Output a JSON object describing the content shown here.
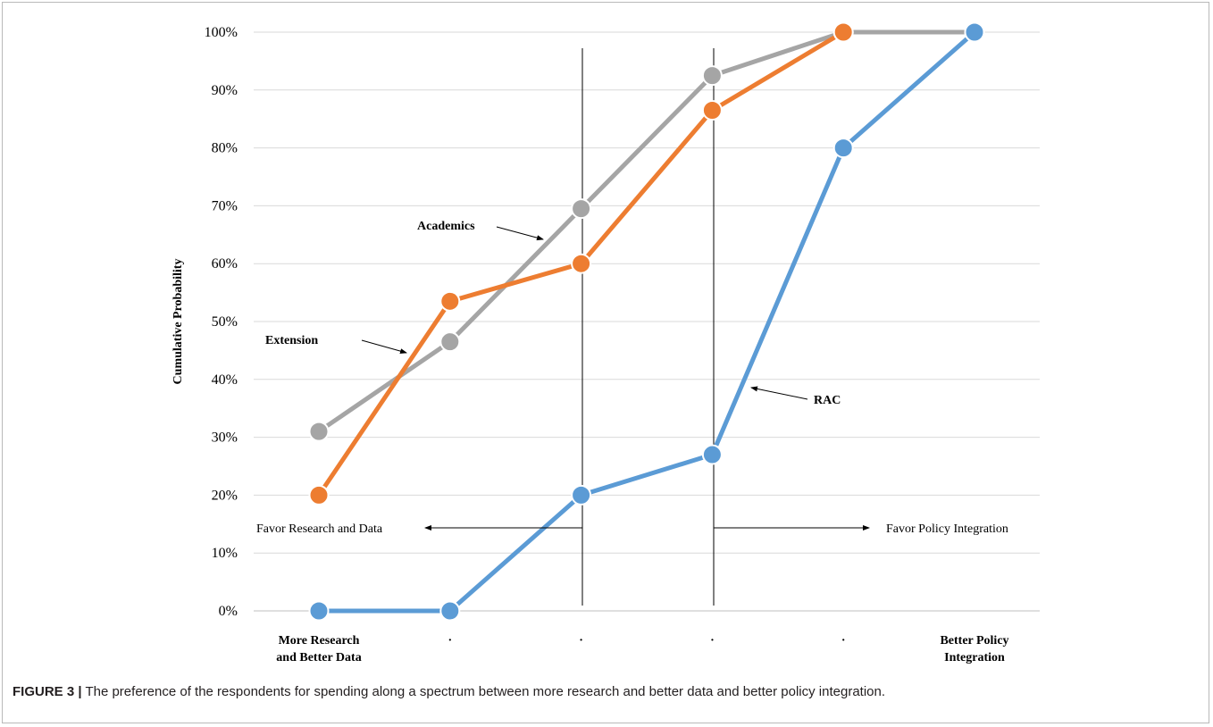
{
  "caption": {
    "label": "FIGURE 3 |",
    "text": "The preference of the respondents for spending along a spectrum between more research and better data and better policy integration."
  },
  "chart_data": {
    "type": "line",
    "title": "",
    "xlabel": "",
    "ylabel": "Cumulative Probability",
    "categories": [
      [
        "More Research",
        "and Better Data"
      ],
      [
        "·"
      ],
      [
        "·"
      ],
      [
        "·"
      ],
      [
        "·"
      ],
      [
        "Better Policy",
        "Integration"
      ]
    ],
    "y_ticks": [
      "0%",
      "10%",
      "20%",
      "30%",
      "40%",
      "50%",
      "60%",
      "70%",
      "80%",
      "90%",
      "100%"
    ],
    "ylim": [
      0,
      100
    ],
    "grid": true,
    "series": [
      {
        "name": "Academics",
        "color": "#a5a5a5",
        "values": [
          31,
          46.5,
          69.5,
          92.5,
          100,
          100
        ]
      },
      {
        "name": "Extension",
        "color": "#ed7d31",
        "values": [
          20,
          53.5,
          60,
          86.5,
          100,
          null
        ]
      },
      {
        "name": "RAC",
        "color": "#5b9bd5",
        "values": [
          0,
          0,
          20,
          27,
          80,
          100
        ]
      }
    ],
    "annotations": [
      {
        "text": "Academics",
        "points_to": "Academics"
      },
      {
        "text": "Extension",
        "points_to": "Extension"
      },
      {
        "text": "RAC",
        "points_to": "RAC"
      },
      {
        "text": "Favor Research and Data",
        "direction": "left"
      },
      {
        "text": "Favor Policy Integration",
        "direction": "right"
      }
    ]
  }
}
